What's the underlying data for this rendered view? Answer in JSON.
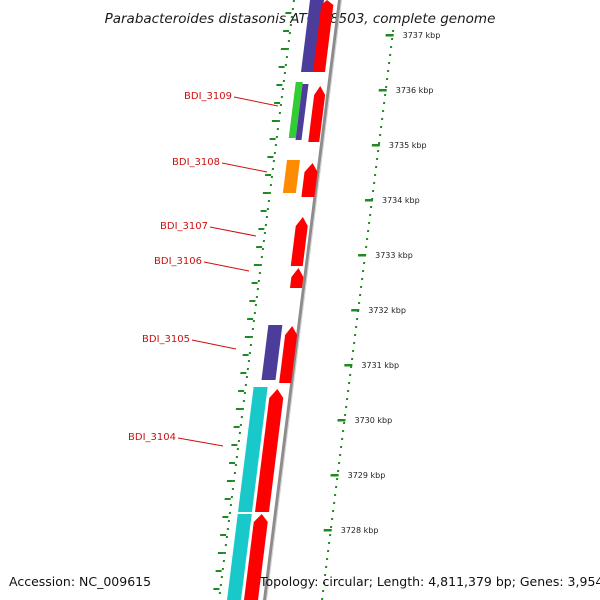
{
  "title": "Parabacteroides distasonis ATCC 8503, complete genome",
  "footer": {
    "accession": "Accession: NC_009615",
    "topology": "Topology: circular; Length: 4,811,379 bp; Genes: 3,954"
  },
  "colors": {
    "forward_cds": "#ff0000",
    "reverse_blue": "#4b3d99",
    "reverse_green": "#33cc33",
    "reverse_orange": "#ff8c00",
    "reverse_cyan": "#19c9c9",
    "backbone": "#8c8c8c",
    "tick": "#1f8a1f",
    "label": "#cc1111"
  },
  "scale_ticks": [
    "3737 kbp",
    "3736 kbp",
    "3735 kbp",
    "3734 kbp",
    "3733 kbp",
    "3732 kbp",
    "3731 kbp",
    "3730 kbp",
    "3729 kbp",
    "3728 kbp"
  ],
  "gene_labels": [
    "BDI_3109",
    "BDI_3108",
    "BDI_3107",
    "BDI_3106",
    "BDI_3105",
    "BDI_3104"
  ]
}
